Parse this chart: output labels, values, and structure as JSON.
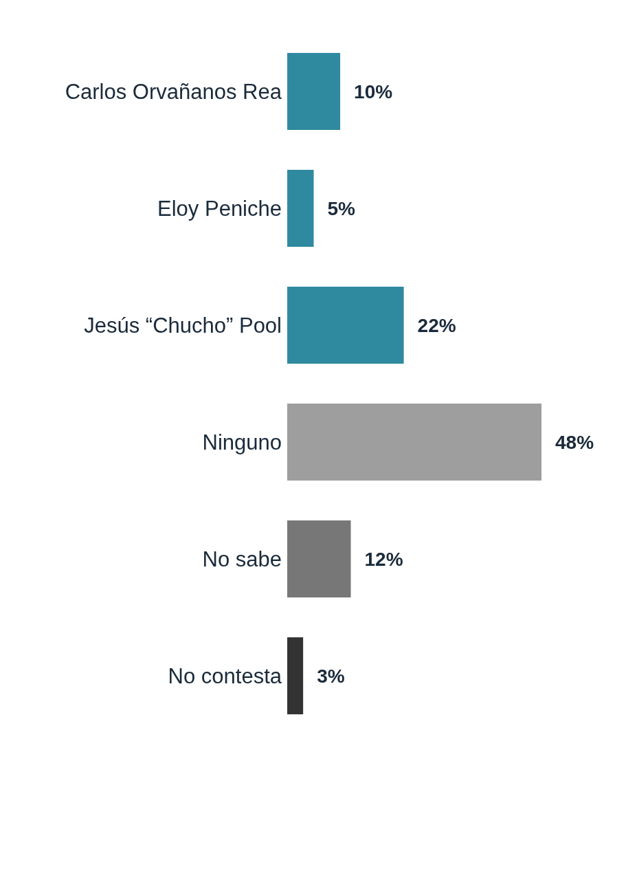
{
  "chart_data": {
    "type": "bar",
    "orientation": "horizontal",
    "categories": [
      "Carlos Orvañanos Rea",
      "Eloy Peniche",
      "Jesús “Chucho” Pool",
      "Ninguno",
      "No sabe",
      "No contesta"
    ],
    "values": [
      10,
      5,
      22,
      48,
      12,
      3
    ],
    "colors": [
      "#2f8aa0",
      "#2f8aa0",
      "#2f8aa0",
      "#9e9e9e",
      "#777777",
      "#333333"
    ],
    "value_labels": [
      "10%",
      "5%",
      "22%",
      "48%",
      "12%",
      "3%"
    ],
    "grid": false,
    "legend": false
  }
}
